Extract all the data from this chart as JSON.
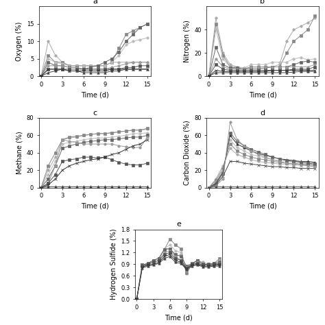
{
  "time": [
    0,
    1,
    2,
    3,
    4,
    5,
    6,
    7,
    8,
    9,
    10,
    11,
    12,
    13,
    14,
    15
  ],
  "oxygen": {
    "series": [
      [
        0,
        10,
        6,
        4,
        3,
        3,
        3,
        3,
        3,
        3,
        4,
        4,
        4,
        4,
        4,
        4
      ],
      [
        0,
        6,
        4,
        4,
        3,
        3,
        3,
        3,
        3,
        3,
        4,
        8,
        12,
        13,
        14,
        15
      ],
      [
        0,
        5,
        4,
        3.5,
        3,
        3,
        3,
        3,
        3,
        3,
        4,
        6,
        9,
        10,
        10.5,
        11
      ],
      [
        0,
        4,
        3,
        3,
        2.5,
        2.5,
        2,
        2.5,
        3,
        4,
        5,
        7,
        10,
        12,
        14,
        15
      ],
      [
        0,
        3,
        3,
        3,
        2.5,
        2.5,
        2,
        2,
        2,
        2,
        2.5,
        3,
        3.5,
        4,
        4,
        4
      ],
      [
        0,
        2,
        2,
        2,
        2,
        2,
        2,
        2,
        2,
        2,
        2,
        2,
        2.5,
        2.5,
        3,
        3
      ],
      [
        0,
        2,
        2,
        2,
        1.5,
        1.5,
        1.5,
        1.5,
        1.5,
        1.5,
        2,
        2,
        2,
        2,
        2,
        2
      ],
      [
        0,
        1,
        1.5,
        2,
        1.5,
        1.5,
        1,
        1,
        1,
        1,
        1.5,
        1.5,
        2,
        2,
        2,
        2
      ]
    ],
    "markers": [
      "o",
      "s",
      "o",
      "s",
      "o",
      "s",
      "x",
      "^"
    ],
    "colors": [
      "#aaaaaa",
      "#888888",
      "#bbbbbb",
      "#666666",
      "#999999",
      "#555555",
      "#333333",
      "#444444"
    ],
    "ylabel": "Oxygen (%)",
    "ylim": [
      0,
      20
    ],
    "yticks": [
      0,
      5,
      10,
      15
    ]
  },
  "nitrogen": {
    "series": [
      [
        0,
        50,
        20,
        10,
        8,
        7,
        7,
        7,
        7,
        8,
        10,
        30,
        40,
        43,
        46,
        50
      ],
      [
        0,
        45,
        18,
        8,
        7,
        6,
        6,
        6,
        7,
        8,
        8,
        20,
        30,
        35,
        40,
        52
      ],
      [
        0,
        40,
        15,
        8,
        8,
        7,
        10,
        10,
        10,
        12,
        12,
        12,
        15,
        16,
        14,
        15
      ],
      [
        0,
        25,
        10,
        7,
        7,
        6,
        8,
        8,
        8,
        8,
        8,
        8,
        10,
        12,
        13,
        12
      ],
      [
        0,
        15,
        8,
        6,
        6,
        6,
        8,
        8,
        8,
        8,
        8,
        8,
        8,
        8,
        8,
        10
      ],
      [
        0,
        10,
        6,
        5,
        5,
        5,
        5,
        5,
        5,
        5,
        5,
        5,
        6,
        6,
        6,
        8
      ],
      [
        0,
        5,
        4,
        4,
        4,
        4,
        4,
        4,
        4,
        5,
        5,
        5,
        5,
        5,
        5,
        5
      ],
      [
        0,
        3,
        3,
        3,
        3,
        3,
        3,
        3,
        3,
        3,
        3,
        3,
        3.5,
        4,
        4,
        4
      ]
    ],
    "markers": [
      "o",
      "s",
      "o",
      "s",
      "o",
      "s",
      "x",
      "^"
    ],
    "colors": [
      "#aaaaaa",
      "#888888",
      "#bbbbbb",
      "#666666",
      "#999999",
      "#555555",
      "#333333",
      "#444444"
    ],
    "ylabel": "Nitrogen (%)",
    "ylim": [
      0,
      60
    ],
    "yticks": [
      0,
      20,
      40
    ]
  },
  "methane": {
    "series": [
      [
        0,
        20,
        35,
        55,
        57,
        58,
        60,
        61,
        62,
        62,
        63,
        64,
        65,
        66,
        66,
        67
      ],
      [
        0,
        25,
        40,
        55,
        58,
        59,
        60,
        61,
        62,
        62,
        63,
        64,
        65,
        66,
        66,
        68
      ],
      [
        0,
        15,
        30,
        50,
        52,
        53,
        55,
        56,
        57,
        57,
        58,
        59,
        60,
        62,
        62,
        63
      ],
      [
        0,
        10,
        25,
        45,
        48,
        50,
        52,
        53,
        54,
        55,
        55,
        56,
        57,
        58,
        58,
        60
      ],
      [
        0,
        5,
        25,
        55,
        53,
        52,
        50,
        50,
        50,
        50,
        50,
        48,
        47,
        46,
        46,
        58
      ],
      [
        0,
        5,
        15,
        30,
        32,
        33,
        35,
        35,
        34,
        35,
        32,
        29,
        27,
        26,
        26,
        28
      ],
      [
        0,
        3,
        10,
        20,
        25,
        28,
        30,
        32,
        33,
        35,
        38,
        40,
        44,
        48,
        50,
        55
      ],
      [
        0,
        1,
        1,
        1,
        1,
        1,
        1,
        1,
        1,
        1,
        1,
        1,
        1,
        1,
        1,
        1
      ]
    ],
    "markers": [
      "o",
      "s",
      "o",
      "s",
      "o",
      "s",
      "x",
      "^"
    ],
    "colors": [
      "#aaaaaa",
      "#888888",
      "#bbbbbb",
      "#666666",
      "#999999",
      "#555555",
      "#333333",
      "#444444"
    ],
    "ylabel": "Methane (%)",
    "ylim": [
      0,
      80
    ],
    "yticks": [
      0,
      20,
      40,
      60,
      80
    ]
  },
  "co2": {
    "series": [
      [
        0,
        10,
        25,
        45,
        38,
        35,
        32,
        30,
        29,
        28,
        27,
        27,
        26,
        26,
        26,
        25
      ],
      [
        0,
        8,
        22,
        50,
        42,
        38,
        35,
        33,
        32,
        30,
        29,
        28,
        28,
        27,
        27,
        26
      ],
      [
        0,
        6,
        20,
        55,
        46,
        42,
        38,
        36,
        34,
        32,
        31,
        30,
        30,
        29,
        29,
        28
      ],
      [
        0,
        5,
        18,
        60,
        50,
        46,
        42,
        39,
        37,
        35,
        33,
        32,
        31,
        30,
        30,
        29
      ],
      [
        0,
        4,
        16,
        63,
        53,
        48,
        44,
        41,
        38,
        35,
        33,
        31,
        30,
        29,
        28,
        27
      ],
      [
        0,
        3,
        13,
        30,
        30,
        28,
        27,
        26,
        25,
        24,
        24,
        23,
        23,
        22,
        22,
        22
      ],
      [
        0,
        2,
        10,
        75,
        55,
        48,
        42,
        38,
        35,
        32,
        30,
        28,
        27,
        26,
        25,
        24
      ],
      [
        0,
        1,
        1,
        1,
        1,
        1,
        1,
        1,
        1,
        1,
        1,
        1,
        1,
        1,
        1,
        1
      ]
    ],
    "markers": [
      "o",
      "s",
      "o",
      "^",
      "s",
      "x",
      "o",
      "^"
    ],
    "colors": [
      "#aaaaaa",
      "#888888",
      "#bbbbbb",
      "#333333",
      "#666666",
      "#444444",
      "#999999",
      "#555555"
    ],
    "ylabel": "Carbon Dioxide (%)",
    "ylim": [
      0,
      80
    ],
    "yticks": [
      0,
      20,
      40,
      60,
      80
    ]
  },
  "h2s": {
    "series": [
      [
        0,
        0.85,
        0.9,
        1.0,
        1.05,
        1.3,
        1.3,
        1.1,
        1.15,
        0.65,
        0.9,
        1.0,
        0.95,
        0.9,
        0.9,
        0.9
      ],
      [
        0,
        0.88,
        0.92,
        1.0,
        1.05,
        1.28,
        1.55,
        1.4,
        1.3,
        0.68,
        0.9,
        1.0,
        0.9,
        0.88,
        0.92,
        1.05
      ],
      [
        0,
        0.88,
        0.92,
        1.0,
        1.05,
        1.3,
        1.4,
        1.25,
        1.2,
        0.75,
        0.92,
        1.0,
        0.9,
        0.9,
        0.92,
        1.0
      ],
      [
        0,
        0.88,
        0.92,
        1.0,
        1.05,
        1.28,
        1.3,
        1.15,
        1.1,
        0.85,
        0.92,
        1.0,
        0.9,
        0.9,
        0.92,
        0.95
      ],
      [
        0,
        0.85,
        0.9,
        0.95,
        1.0,
        1.2,
        1.25,
        1.1,
        1.0,
        0.82,
        0.92,
        0.95,
        0.88,
        0.88,
        0.9,
        0.92
      ],
      [
        0,
        0.85,
        0.9,
        0.95,
        1.0,
        1.15,
        1.2,
        1.05,
        1.0,
        0.8,
        0.9,
        0.92,
        0.88,
        0.88,
        0.9,
        0.9
      ],
      [
        0,
        0.82,
        0.88,
        0.9,
        0.95,
        1.1,
        1.15,
        1.0,
        0.95,
        0.78,
        0.88,
        0.9,
        0.85,
        0.85,
        0.87,
        0.88
      ],
      [
        0,
        0.8,
        0.85,
        0.88,
        0.92,
        1.05,
        1.1,
        0.95,
        0.92,
        0.76,
        0.85,
        0.88,
        0.83,
        0.83,
        0.85,
        0.85
      ]
    ],
    "markers": [
      "o",
      "s",
      "o",
      "s",
      "o",
      "s",
      "x",
      "^"
    ],
    "colors": [
      "#aaaaaa",
      "#888888",
      "#bbbbbb",
      "#666666",
      "#999999",
      "#555555",
      "#333333",
      "#444444"
    ],
    "ylabel": "Hydrogen Sulfide (%)",
    "ylim": [
      0,
      1.8
    ],
    "yticks": [
      0,
      0.3,
      0.6,
      0.9,
      1.2,
      1.5,
      1.8
    ]
  },
  "xlabel": "Time (d)",
  "background_color": "#ffffff",
  "label_fontsize": 7,
  "tick_fontsize": 6,
  "subplot_labels": [
    "a",
    "b",
    "c",
    "d",
    "e"
  ]
}
